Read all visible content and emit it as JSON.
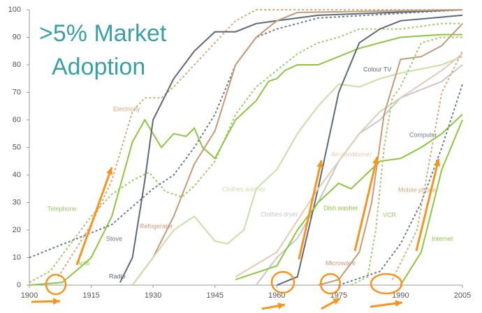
{
  "chart_data": {
    "type": "line",
    "title_lines": [
      ">5% Market",
      "Adoption"
    ],
    "xlim": [
      1900,
      2005
    ],
    "xticks": [
      1900,
      1915,
      1930,
      1945,
      1960,
      1975,
      1990,
      2005
    ],
    "ylim": [
      0,
      100
    ],
    "yticks": [
      0,
      10,
      20,
      30,
      40,
      50,
      60,
      70,
      80,
      90,
      100
    ],
    "series": [
      {
        "name": "Telephone",
        "color": "#9ccc65",
        "dashed": true,
        "x": [
          1900,
          1905,
          1910,
          1915,
          1920,
          1925,
          1929,
          1933,
          1937,
          1940,
          1945,
          1950,
          1955,
          1960,
          1965,
          1970,
          1975,
          1980,
          1990,
          2000,
          2005
        ],
        "values": [
          1,
          5,
          15,
          25,
          33,
          38,
          41,
          34,
          32,
          36,
          45,
          62,
          72,
          78,
          84,
          88,
          90,
          93,
          93,
          95,
          95
        ]
      },
      {
        "name": "Electricity",
        "color": "#d4a97a",
        "dashed": true,
        "x": [
          1907,
          1910,
          1915,
          1920,
          1925,
          1928,
          1932,
          1935,
          1940,
          1945,
          1950,
          1955,
          2005
        ],
        "values": [
          3,
          10,
          22,
          38,
          63,
          68,
          68,
          72,
          80,
          88,
          96,
          100,
          100
        ]
      },
      {
        "name": "Auto",
        "color": "#8cc63f",
        "dashed": false,
        "x": [
          1900,
          1908,
          1912,
          1915,
          1920,
          1925,
          1928,
          1930,
          1932,
          1935,
          1938,
          1940,
          1942,
          1945,
          1950,
          1955,
          1958,
          1960,
          1962,
          1965,
          1970,
          1975,
          1980,
          1985,
          1990,
          2000,
          2005
        ],
        "values": [
          0,
          1,
          6,
          10,
          25,
          52,
          60,
          55,
          50,
          55,
          54,
          57,
          50,
          46,
          60,
          67,
          74,
          75,
          78,
          80,
          80,
          83,
          86,
          88,
          90,
          91,
          91
        ]
      },
      {
        "name": "Stove",
        "color": "#6b7b8c",
        "dashed": true,
        "x": [
          1900,
          1910,
          1920,
          1930,
          1935,
          1940,
          1945,
          1950,
          1955,
          1960,
          1970,
          2005
        ],
        "values": [
          10,
          16,
          22,
          35,
          40,
          50,
          62,
          80,
          90,
          93,
          97,
          100
        ]
      },
      {
        "name": "Radio",
        "color": "#5a6978",
        "dashed": false,
        "x": [
          1922,
          1925,
          1928,
          1930,
          1935,
          1940,
          1945,
          1950,
          1955,
          1960,
          1970,
          2005
        ],
        "values": [
          1,
          10,
          38,
          60,
          75,
          85,
          92,
          92,
          95,
          96,
          98,
          100
        ]
      },
      {
        "name": "Refrigerator",
        "color": "#c49a78",
        "dashed": false,
        "x": [
          1925,
          1930,
          1935,
          1940,
          1945,
          1950,
          1955,
          1960,
          1965,
          2005
        ],
        "values": [
          0,
          10,
          25,
          44,
          56,
          80,
          90,
          96,
          99,
          100
        ]
      },
      {
        "name": "Clothes washer",
        "color": "#c9dfa6",
        "dashed": false,
        "x": [
          1925,
          1930,
          1935,
          1940,
          1945,
          1948,
          1952,
          1955,
          1960,
          1965,
          1970,
          1975,
          1980,
          1985,
          1990,
          2000,
          2005
        ],
        "values": [
          0,
          10,
          20,
          25,
          16,
          15,
          20,
          35,
          42,
          55,
          65,
          73,
          72,
          75,
          77,
          80,
          83
        ]
      },
      {
        "name": "Clothes dryer",
        "color": "#c5c8cc",
        "dashed": false,
        "x": [
          1955,
          1960,
          1965,
          1970,
          1975,
          1980,
          1985,
          1990,
          2000,
          2005
        ],
        "values": [
          0,
          10,
          17,
          30,
          45,
          55,
          60,
          68,
          74,
          80
        ]
      },
      {
        "name": "Colour TV",
        "color": "#5a6978",
        "dashed": false,
        "x": [
          1960,
          1965,
          1970,
          1975,
          1980,
          1985,
          1990,
          2005
        ],
        "values": [
          0,
          3,
          35,
          70,
          88,
          93,
          96,
          98
        ]
      },
      {
        "name": "Air-conditioner",
        "color": "#e3cbb0",
        "dashed": false,
        "x": [
          1950,
          1960,
          1970,
          1975,
          1980,
          1985,
          1990,
          2000,
          2005
        ],
        "values": [
          3,
          12,
          35,
          45,
          55,
          63,
          68,
          78,
          84
        ]
      },
      {
        "name": "Dish washer",
        "color": "#8cc63f",
        "dashed": false,
        "x": [
          1950,
          1960,
          1965,
          1970,
          1975,
          1978,
          1985,
          1990,
          1995,
          2000,
          2005
        ],
        "values": [
          2,
          7,
          20,
          30,
          37,
          35,
          45,
          46,
          50,
          55,
          62
        ]
      },
      {
        "name": "Microwave",
        "color": "#c49a78",
        "dashed": false,
        "x": [
          1970,
          1975,
          1980,
          1983,
          1986,
          1990,
          1995,
          2000,
          2005
        ],
        "values": [
          0,
          2,
          12,
          30,
          62,
          82,
          83,
          87,
          95
        ]
      },
      {
        "name": "VCR",
        "color": "#9ccc65",
        "dashed": true,
        "x": [
          1978,
          1982,
          1984,
          1986,
          1988,
          1990,
          1995,
          2000,
          2005
        ],
        "values": [
          0,
          3,
          20,
          50,
          68,
          72,
          88,
          90,
          90
        ]
      },
      {
        "name": "Computer",
        "color": "#6b7b8c",
        "dashed": true,
        "x": [
          1975,
          1985,
          1990,
          1995,
          2000,
          2005
        ],
        "values": [
          0,
          5,
          15,
          30,
          50,
          73
        ]
      },
      {
        "name": "Mobile phone",
        "color": "#d4a97a",
        "dashed": true,
        "x": [
          1988,
          1994,
          2000,
          2005
        ],
        "values": [
          2,
          20,
          70,
          85
        ]
      },
      {
        "name": "Internet",
        "color": "#8cc63f",
        "dashed": false,
        "x": [
          1990,
          1995,
          2000,
          2005
        ],
        "values": [
          0,
          12,
          42,
          60
        ]
      }
    ]
  }
}
